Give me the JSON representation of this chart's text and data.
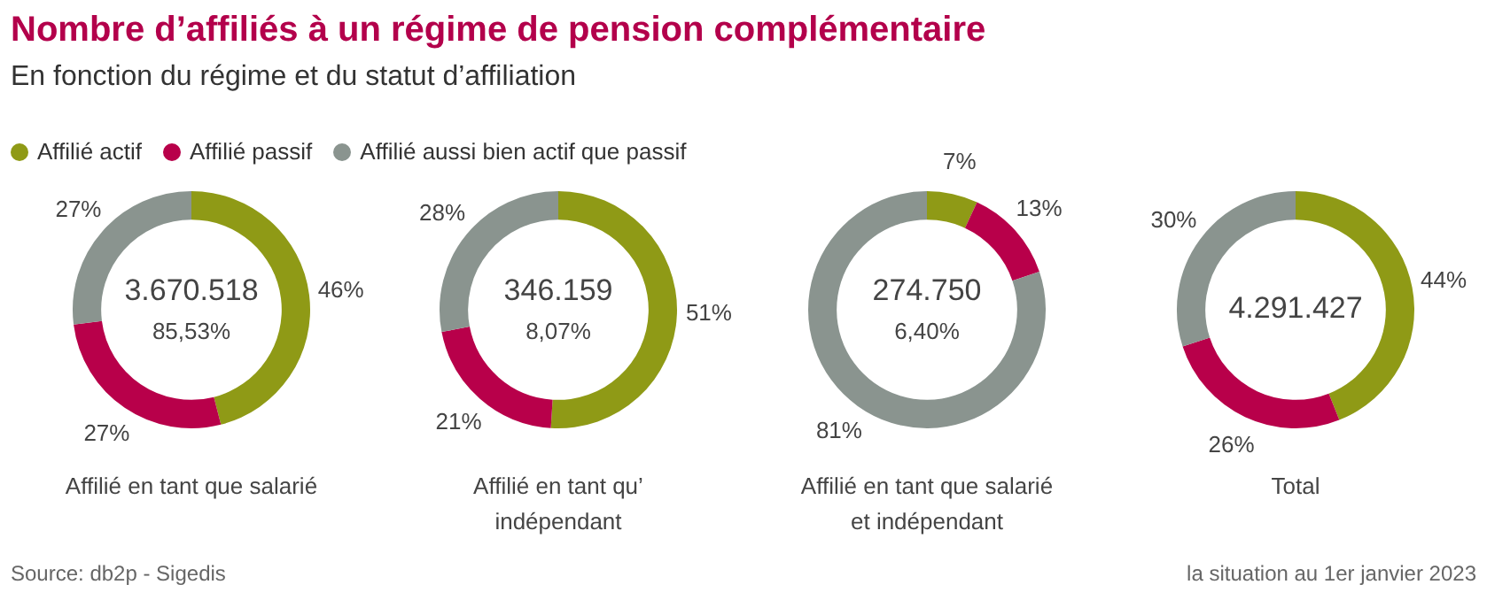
{
  "chart_data": [
    {
      "type": "other",
      "title": "Nombre d’affiliés à un régime de pension complémentaire",
      "subtitle": "En fonction du régime et du statut d’affiliation",
      "annotations": [
        "Source: db2p - Sigedis",
        "la situation au 1er janvier 2023"
      ]
    },
    {
      "type": "donut",
      "categories": [
        "Affilié actif",
        "Affilié passif",
        "Affilié aussi bien actif que passif"
      ],
      "values": [
        46,
        27,
        27
      ],
      "colors": [
        "#8f9a16",
        "#b8004a",
        "#8a948f"
      ],
      "value_labels": [
        "46%",
        "27%",
        "27%"
      ],
      "annotations": [
        "3.670.518",
        "85,53%"
      ],
      "xlabel": "Affilié en tant que salarié",
      "legend": "top"
    },
    {
      "type": "donut",
      "categories": [
        null,
        null,
        null
      ],
      "values": [
        51,
        21,
        28
      ],
      "colors": [
        "#8f9a16",
        "#b8004a",
        "#8a948f"
      ],
      "value_labels": [
        "51%",
        "21%",
        "28%"
      ],
      "annotations": [
        "346.159",
        "8,07%"
      ],
      "xlabel": "Affilié en tant qu’ indépendant"
    },
    {
      "type": "donut",
      "categories": [
        null,
        null,
        null
      ],
      "values": [
        7,
        13,
        81
      ],
      "colors": [
        "#8f9a16",
        "#b8004a",
        "#8a948f"
      ],
      "value_labels": [
        "7%",
        "13%",
        "81%"
      ],
      "annotations": [
        "274.750",
        "6,40%"
      ],
      "xlabel": "Affilié en tant que salarié et indépendant"
    },
    {
      "type": "donut",
      "categories": [
        null,
        null,
        null
      ],
      "values": [
        44,
        26,
        30
      ],
      "colors": [
        "#8f9a16",
        "#b8004a",
        "#8a948f"
      ],
      "value_labels": [
        "44%",
        "26%",
        "30%"
      ],
      "annotations": [
        "4.291.427"
      ],
      "xlabel": "Total"
    }
  ]
}
